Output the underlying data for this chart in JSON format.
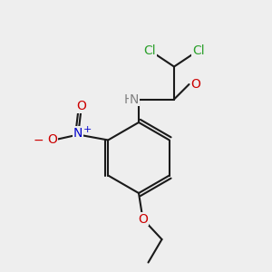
{
  "bg_color": "#eeeeee",
  "bond_color": "#1a1a1a",
  "bond_width": 1.5,
  "atom_colors": {
    "Cl": "#2ca02c",
    "O": "#cc0000",
    "N_amide": "#808080",
    "N_nitro": "#0000cc",
    "O_minus": "#cc0000",
    "H": "#808080",
    "C": "#1a1a1a"
  },
  "font_size": 11,
  "font_size_small": 10
}
